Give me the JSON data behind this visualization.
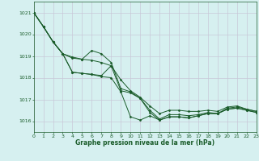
{
  "title": "",
  "xlabel": "Graphe pression niveau de la mer (hPa)",
  "background_color": "#d6f0f0",
  "grid_color": "#c8c8d8",
  "line_color": "#1a5c2a",
  "xlim": [
    0,
    23
  ],
  "ylim": [
    1015.5,
    1021.5
  ],
  "yticks": [
    1016,
    1017,
    1018,
    1019,
    1020,
    1021
  ],
  "xticks": [
    0,
    1,
    2,
    3,
    4,
    5,
    6,
    7,
    8,
    9,
    10,
    11,
    12,
    13,
    14,
    15,
    16,
    17,
    18,
    19,
    20,
    21,
    22,
    23
  ],
  "series": [
    {
      "x": [
        0,
        1,
        2,
        3,
        4,
        5,
        6,
        7,
        8,
        9,
        10,
        11,
        12,
        13,
        14,
        15,
        16,
        17,
        18,
        19,
        20,
        21,
        22,
        23
      ],
      "y": [
        1021.0,
        1020.35,
        1019.65,
        1019.1,
        1018.95,
        1018.85,
        1018.8,
        1018.7,
        1018.55,
        1017.9,
        1017.4,
        1017.1,
        1016.7,
        1016.35,
        1016.5,
        1016.5,
        1016.45,
        1016.45,
        1016.5,
        1016.45,
        1016.65,
        1016.7,
        1016.55,
        1016.45
      ]
    },
    {
      "x": [
        0,
        1,
        2,
        3,
        4,
        5,
        6,
        7,
        8,
        9,
        10,
        11,
        12,
        13,
        14,
        15,
        16,
        17,
        18,
        19,
        20,
        21,
        22,
        23
      ],
      "y": [
        1021.0,
        1020.35,
        1019.65,
        1019.1,
        1018.9,
        1018.85,
        1019.25,
        1019.1,
        1018.7,
        1017.5,
        1017.35,
        1017.05,
        1016.5,
        1016.1,
        1016.3,
        1016.3,
        1016.25,
        1016.3,
        1016.4,
        1016.35,
        1016.6,
        1016.65,
        1016.55,
        1016.45
      ]
    },
    {
      "x": [
        0,
        1,
        2,
        3,
        4,
        5,
        6,
        7,
        8,
        9,
        10,
        11,
        12,
        13,
        14,
        15,
        16,
        17,
        18,
        19,
        20,
        21,
        22,
        23
      ],
      "y": [
        1021.0,
        1020.35,
        1019.65,
        1019.1,
        1018.25,
        1018.2,
        1018.15,
        1018.1,
        1018.55,
        1017.4,
        1017.3,
        1017.05,
        1016.4,
        1016.05,
        1016.2,
        1016.2,
        1016.15,
        1016.25,
        1016.35,
        1016.35,
        1016.55,
        1016.6,
        1016.5,
        1016.4
      ]
    },
    {
      "x": [
        0,
        1,
        2,
        3,
        4,
        5,
        6,
        7,
        8,
        9,
        10,
        11,
        12,
        13,
        14,
        15,
        16,
        17,
        18,
        19,
        20,
        21,
        22,
        23
      ],
      "y": [
        1021.0,
        1020.35,
        1019.65,
        1019.1,
        1018.25,
        1018.2,
        1018.15,
        1018.05,
        1018.0,
        1017.35,
        1016.2,
        1016.05,
        1016.25,
        1016.05,
        1016.2,
        1016.2,
        1016.15,
        1016.25,
        1016.35,
        1016.35,
        1016.55,
        1016.6,
        1016.5,
        1016.4
      ]
    }
  ]
}
